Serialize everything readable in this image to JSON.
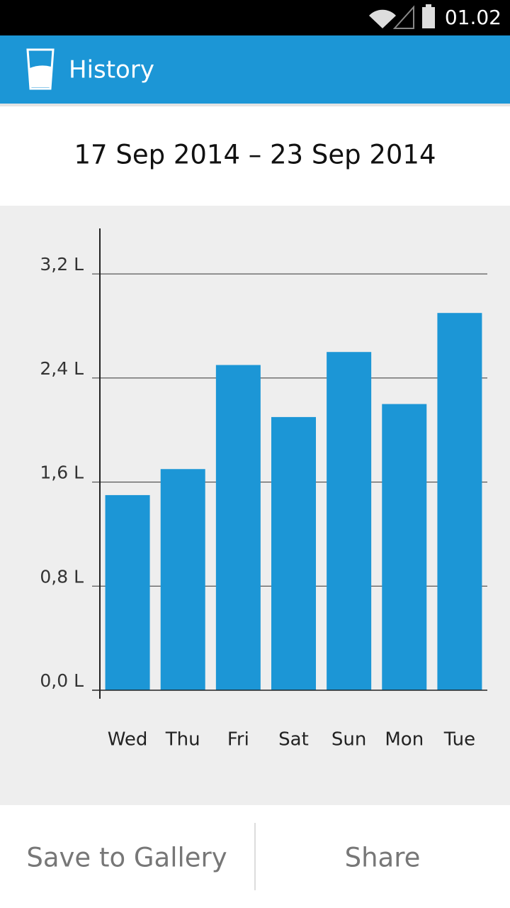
{
  "status_bar": {
    "time": "01.02"
  },
  "app_bar": {
    "title": "History"
  },
  "date_range": "17 Sep 2014 – 23 Sep 2014",
  "chart_data": {
    "type": "bar",
    "categories": [
      "Wed",
      "Thu",
      "Fri",
      "Sat",
      "Sun",
      "Mon",
      "Tue"
    ],
    "values": [
      1.5,
      1.7,
      2.5,
      2.1,
      2.6,
      2.2,
      2.9
    ],
    "color": "#1c96d6",
    "ylim": [
      0,
      3.55
    ],
    "yticks": [
      {
        "value": 0,
        "label": "0,0 L"
      },
      {
        "value": 0.8,
        "label": "0,8 L"
      },
      {
        "value": 1.6,
        "label": "1,6 L"
      },
      {
        "value": 2.4,
        "label": "2,4 L"
      },
      {
        "value": 3.2,
        "label": "3,2 L"
      }
    ],
    "grid": true
  },
  "buttons": [
    "Save to Gallery",
    "Share"
  ]
}
